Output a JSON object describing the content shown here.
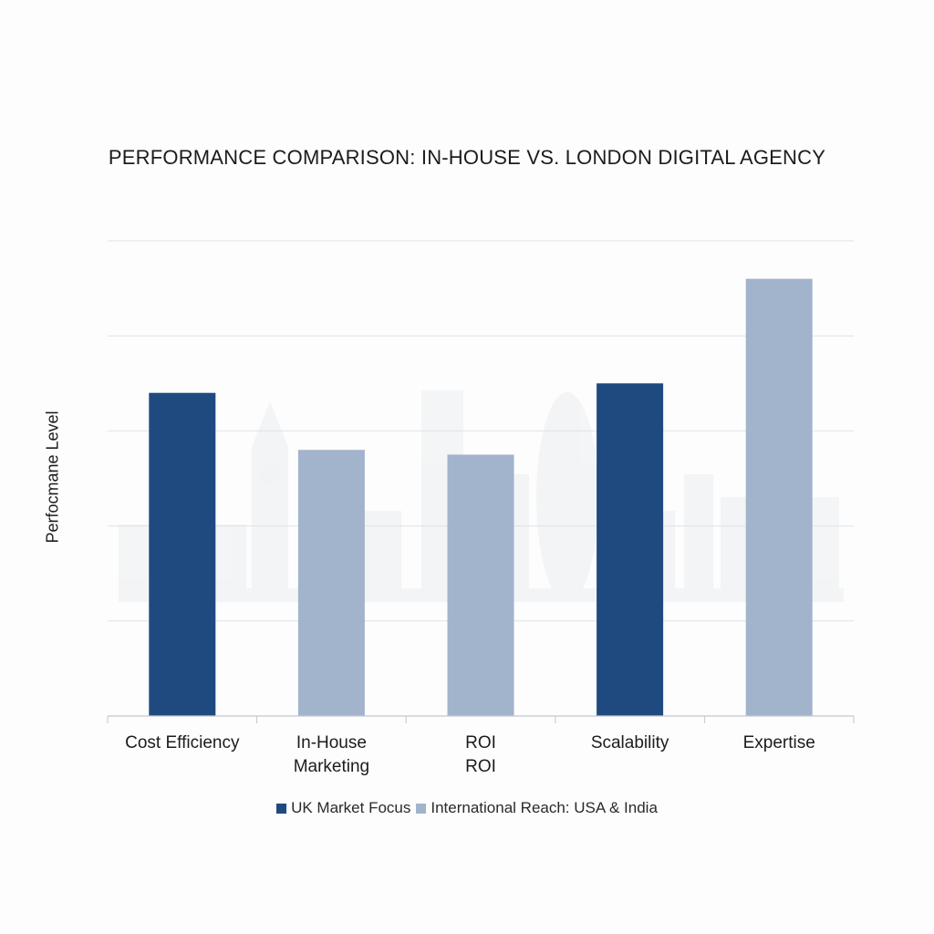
{
  "chart_data": {
    "type": "bar",
    "title": "PERFORMANCE COMPARISON: IN-HOUSE VS. LONDON DIGITAL AGENCY",
    "xlabel": "",
    "ylabel": "Perfocmane Level",
    "ylim": [
      0,
      5
    ],
    "grid": true,
    "legend_placement": "bottom",
    "categories": [
      [
        "Cost Efficiency"
      ],
      [
        "In-House",
        "Marketing"
      ],
      [
        "ROI",
        "ROI"
      ],
      [
        "Scalability"
      ],
      [
        "Expertise"
      ]
    ],
    "values": [
      3.4,
      2.8,
      2.75,
      3.5,
      4.6
    ],
    "bar_series": [
      0,
      1,
      1,
      0,
      1
    ],
    "series": [
      {
        "name": "UK Market Focus",
        "color": "#1e4a80"
      },
      {
        "name": "International Reach: USA & India",
        "color": "#a2b3cc"
      }
    ]
  }
}
